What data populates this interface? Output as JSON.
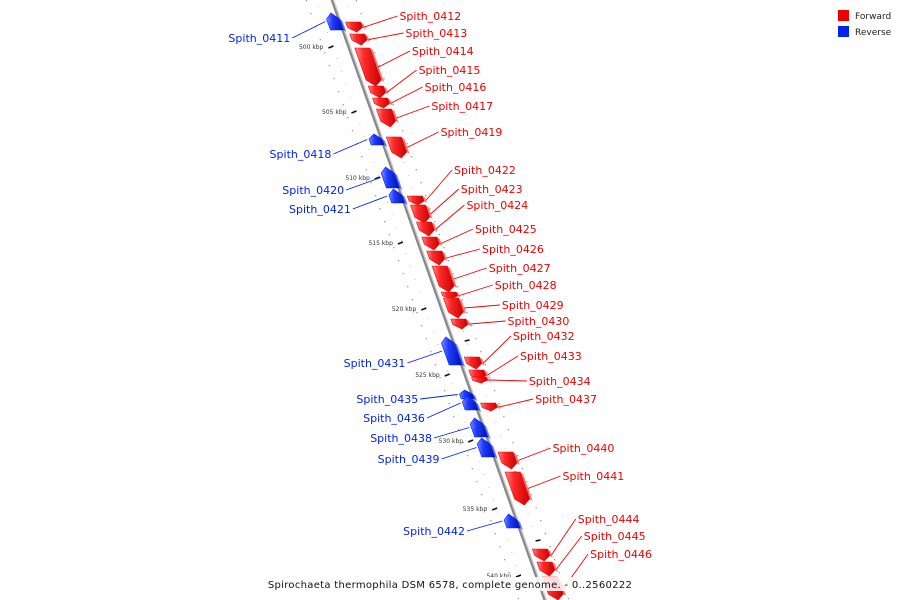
{
  "caption": "Spirochaeta thermophila DSM 6578, complete genome. - 0..2560222",
  "legend": [
    {
      "label": "Forward",
      "color": "#ee0000"
    },
    {
      "label": "Reverse",
      "color": "#0022ee"
    }
  ],
  "colors": {
    "forward": "#ee0000",
    "reverse": "#0022ee",
    "axis": "#888888"
  },
  "scale": {
    "unit": "kbp",
    "ticks": [
      "500 kbp",
      "505 kbp",
      "510 kbp",
      "515 kbp",
      "520 kbp",
      "525 kbp",
      "530 kbp",
      "535 kbp",
      "540 kbp"
    ]
  },
  "genes": [
    {
      "name": "Spith_0411",
      "strand": "reverse"
    },
    {
      "name": "Spith_0412",
      "strand": "forward"
    },
    {
      "name": "Spith_0413",
      "strand": "forward"
    },
    {
      "name": "Spith_0414",
      "strand": "forward"
    },
    {
      "name": "Spith_0415",
      "strand": "forward"
    },
    {
      "name": "Spith_0416",
      "strand": "forward"
    },
    {
      "name": "Spith_0417",
      "strand": "forward"
    },
    {
      "name": "Spith_0418",
      "strand": "reverse"
    },
    {
      "name": "Spith_0419",
      "strand": "forward"
    },
    {
      "name": "Spith_0420",
      "strand": "reverse"
    },
    {
      "name": "Spith_0421",
      "strand": "reverse"
    },
    {
      "name": "Spith_0422",
      "strand": "forward"
    },
    {
      "name": "Spith_0423",
      "strand": "forward"
    },
    {
      "name": "Spith_0424",
      "strand": "forward"
    },
    {
      "name": "Spith_0425",
      "strand": "forward"
    },
    {
      "name": "Spith_0426",
      "strand": "forward"
    },
    {
      "name": "Spith_0427",
      "strand": "forward"
    },
    {
      "name": "Spith_0428",
      "strand": "forward"
    },
    {
      "name": "Spith_0429",
      "strand": "forward"
    },
    {
      "name": "Spith_0430",
      "strand": "forward"
    },
    {
      "name": "Spith_0431",
      "strand": "reverse"
    },
    {
      "name": "Spith_0432",
      "strand": "forward"
    },
    {
      "name": "Spith_0433",
      "strand": "forward"
    },
    {
      "name": "Spith_0434",
      "strand": "forward"
    },
    {
      "name": "Spith_0435",
      "strand": "reverse"
    },
    {
      "name": "Spith_0436",
      "strand": "reverse"
    },
    {
      "name": "Spith_0437",
      "strand": "forward"
    },
    {
      "name": "Spith_0438",
      "strand": "reverse"
    },
    {
      "name": "Spith_0439",
      "strand": "reverse"
    },
    {
      "name": "Spith_0440",
      "strand": "forward"
    },
    {
      "name": "Spith_0441",
      "strand": "forward"
    },
    {
      "name": "Spith_0442",
      "strand": "reverse"
    },
    {
      "name": "Spith_0444",
      "strand": "forward"
    },
    {
      "name": "Spith_0445",
      "strand": "forward"
    },
    {
      "name": "Spith_0446",
      "strand": "forward"
    }
  ]
}
